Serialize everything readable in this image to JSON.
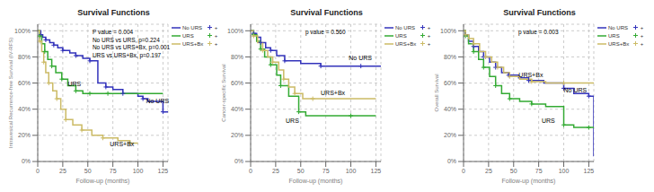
{
  "chart_data": [
    {
      "type": "line",
      "title": "Survival Functions",
      "x_label": "Follow-up (months)",
      "y_label": "Intravesical Recurrence-free Survival (IV-RFS)",
      "annotation": "P value = 0.004\nNo URS vs URS, p=0.224\nNo URS vs URS+Bx, p=0.001\nURS vs URS+Bx, p=0.197",
      "curve_labels": [
        {
          "text": "No URS",
          "x": 108,
          "y": 0.44
        },
        {
          "text": "URS",
          "x": 30,
          "y": 0.57
        },
        {
          "text": "URS+Bx",
          "x": 72,
          "y": 0.11
        }
      ],
      "xlim": [
        0,
        130
      ],
      "ylim": [
        0,
        1.05
      ],
      "xticks": [
        0,
        25,
        50,
        75,
        100,
        125
      ],
      "yticks": [
        {
          "value": 0.0,
          "label": "0%"
        },
        {
          "value": 0.2,
          "label": "20%"
        },
        {
          "value": 0.4,
          "label": "40%"
        },
        {
          "value": 0.6,
          "label": "60%"
        },
        {
          "value": 0.8,
          "label": "80%"
        },
        {
          "value": 1.0,
          "label": "100%"
        }
      ],
      "grid": true,
      "legend": "right",
      "series": [
        {
          "name": "No URS",
          "type": "step",
          "color": "#3333bb",
          "x": [
            0,
            3,
            5,
            8,
            12,
            16,
            20,
            25,
            32,
            38,
            45,
            52,
            60,
            68,
            75,
            85,
            100,
            105,
            110,
            125,
            130
          ],
          "values": [
            1.0,
            0.97,
            0.95,
            0.93,
            0.91,
            0.89,
            0.87,
            0.85,
            0.83,
            0.81,
            0.79,
            0.77,
            0.6,
            0.57,
            0.55,
            0.52,
            0.5,
            0.48,
            0.46,
            0.38,
            0.38
          ]
        },
        {
          "name": "URS",
          "type": "step",
          "color": "#33aa33",
          "x": [
            0,
            2,
            4,
            7,
            10,
            14,
            18,
            24,
            30,
            38,
            45,
            52,
            60,
            70,
            100,
            125
          ],
          "values": [
            1.0,
            0.96,
            0.9,
            0.84,
            0.78,
            0.73,
            0.68,
            0.63,
            0.58,
            0.54,
            0.52,
            0.52,
            0.52,
            0.52,
            0.52,
            0.52
          ]
        },
        {
          "name": "URS+Bx",
          "type": "step",
          "color": "#ccbb66",
          "x": [
            0,
            2,
            4,
            6,
            8,
            11,
            15,
            19,
            23,
            28,
            35,
            44,
            54,
            65,
            80,
            92,
            100
          ],
          "values": [
            1.0,
            0.92,
            0.84,
            0.76,
            0.68,
            0.6,
            0.54,
            0.48,
            0.4,
            0.32,
            0.28,
            0.24,
            0.2,
            0.18,
            0.16,
            0.14,
            0.14
          ]
        },
        {
          "name": "+",
          "type": "scatter",
          "marker": "+",
          "color": "#3333bb",
          "x": [
            3,
            8,
            16,
            25,
            38,
            52,
            68,
            85,
            105,
            125
          ],
          "values": [
            0.97,
            0.93,
            0.89,
            0.85,
            0.81,
            0.77,
            0.57,
            0.52,
            0.48,
            0.38
          ]
        },
        {
          "name": "+",
          "type": "scatter",
          "marker": "+",
          "color": "#33aa33",
          "x": [
            2,
            7,
            14,
            24,
            38,
            52,
            70
          ],
          "values": [
            0.96,
            0.84,
            0.73,
            0.63,
            0.54,
            0.52,
            0.52
          ]
        },
        {
          "name": "+",
          "type": "scatter",
          "marker": "+",
          "color": "#ccbb66",
          "x": [
            2,
            6,
            11,
            19,
            28,
            44,
            65,
            92
          ],
          "values": [
            0.92,
            0.76,
            0.6,
            0.48,
            0.32,
            0.24,
            0.18,
            0.14
          ]
        }
      ]
    },
    {
      "type": "line",
      "title": "Survival Functions",
      "x_label": "Follow-up (months)",
      "y_label": "Cancer-specific Survival",
      "annotation": "p value = 0.560",
      "curve_labels": [
        {
          "text": "No URS",
          "x": 98,
          "y": 0.77
        },
        {
          "text": "URS",
          "x": 35,
          "y": 0.29
        },
        {
          "text": "URS+Bx",
          "x": 70,
          "y": 0.5
        }
      ],
      "xlim": [
        0,
        130
      ],
      "ylim": [
        0,
        1.05
      ],
      "xticks": [
        0,
        25,
        50,
        75,
        100,
        125
      ],
      "yticks": [
        {
          "value": 0.0,
          "label": "0%"
        },
        {
          "value": 0.2,
          "label": "20%"
        },
        {
          "value": 0.4,
          "label": "40%"
        },
        {
          "value": 0.6,
          "label": "60%"
        },
        {
          "value": 0.8,
          "label": "80%"
        },
        {
          "value": 1.0,
          "label": "100%"
        }
      ],
      "grid": true,
      "legend": "right",
      "series": [
        {
          "name": "No URS",
          "type": "step",
          "color": "#3333bb",
          "x": [
            0,
            3,
            6,
            10,
            15,
            20,
            26,
            34,
            50,
            70,
            100,
            110,
            125,
            130
          ],
          "values": [
            1.0,
            0.98,
            0.95,
            0.91,
            0.87,
            0.85,
            0.81,
            0.77,
            0.75,
            0.73,
            0.73,
            0.73,
            0.73,
            0.73
          ]
        },
        {
          "name": "URS",
          "type": "step",
          "color": "#33aa33",
          "x": [
            0,
            3,
            6,
            10,
            14,
            20,
            26,
            30,
            38,
            48,
            55,
            100,
            125
          ],
          "values": [
            1.0,
            0.97,
            0.92,
            0.86,
            0.8,
            0.74,
            0.66,
            0.58,
            0.5,
            0.38,
            0.35,
            0.35,
            0.35
          ]
        },
        {
          "name": "URS+Bx",
          "type": "step",
          "color": "#ccbb66",
          "x": [
            0,
            3,
            7,
            12,
            17,
            22,
            28,
            33,
            38,
            44,
            52,
            62,
            100,
            125
          ],
          "values": [
            1.0,
            0.96,
            0.91,
            0.85,
            0.8,
            0.76,
            0.7,
            0.63,
            0.57,
            0.52,
            0.48,
            0.48,
            0.48,
            0.48
          ]
        },
        {
          "name": "+",
          "type": "scatter",
          "marker": "+",
          "color": "#3333bb",
          "x": [
            3,
            10,
            20,
            34,
            70,
            110
          ],
          "values": [
            0.98,
            0.91,
            0.85,
            0.77,
            0.73,
            0.73
          ]
        },
        {
          "name": "+",
          "type": "scatter",
          "marker": "+",
          "color": "#33aa33",
          "x": [
            3,
            10,
            20,
            30,
            48,
            100
          ],
          "values": [
            0.97,
            0.86,
            0.74,
            0.58,
            0.38,
            0.35
          ]
        },
        {
          "name": "+",
          "type": "scatter",
          "marker": "+",
          "color": "#ccbb66",
          "x": [
            3,
            12,
            22,
            33,
            44,
            62
          ],
          "values": [
            0.96,
            0.85,
            0.76,
            0.63,
            0.52,
            0.48
          ]
        }
      ]
    },
    {
      "type": "line",
      "title": "Survival Functions",
      "x_label": "Follow-up (months)",
      "y_label": "Overall Survival",
      "annotation": "p value = 0.003",
      "curve_labels": [
        {
          "text": "No URS",
          "x": 100,
          "y": 0.52
        },
        {
          "text": "URS",
          "x": 78,
          "y": 0.29
        },
        {
          "text": "URS+Bx",
          "x": 55,
          "y": 0.64
        }
      ],
      "xlim": [
        0,
        130
      ],
      "ylim": [
        0,
        1.05
      ],
      "xticks": [
        0,
        25,
        50,
        75,
        100,
        125
      ],
      "yticks": [
        {
          "value": 0.0,
          "label": "0%"
        },
        {
          "value": 0.2,
          "label": "20%"
        },
        {
          "value": 0.4,
          "label": "40%"
        },
        {
          "value": 0.6,
          "label": "60%"
        },
        {
          "value": 0.8,
          "label": "80%"
        },
        {
          "value": 1.0,
          "label": "100%"
        }
      ],
      "grid": true,
      "legend": "right",
      "series": [
        {
          "name": "No URS",
          "type": "step",
          "color": "#3333bb",
          "x": [
            0,
            2,
            5,
            10,
            15,
            20,
            26,
            32,
            38,
            45,
            55,
            65,
            80,
            100,
            110,
            125,
            130
          ],
          "values": [
            1.0,
            0.97,
            0.92,
            0.88,
            0.84,
            0.8,
            0.76,
            0.72,
            0.68,
            0.66,
            0.64,
            0.62,
            0.6,
            0.56,
            0.52,
            0.5,
            0.04
          ]
        },
        {
          "name": "URS",
          "type": "step",
          "color": "#33aa33",
          "x": [
            0,
            2,
            5,
            10,
            15,
            20,
            26,
            32,
            38,
            46,
            56,
            68,
            82,
            100,
            110,
            125,
            130
          ],
          "values": [
            1.0,
            0.96,
            0.9,
            0.84,
            0.78,
            0.72,
            0.65,
            0.58,
            0.52,
            0.48,
            0.46,
            0.44,
            0.42,
            0.28,
            0.26,
            0.26,
            0.26
          ]
        },
        {
          "name": "URS+Bx",
          "type": "step",
          "color": "#ccbb66",
          "x": [
            0,
            2,
            5,
            10,
            16,
            22,
            28,
            34,
            40,
            46,
            56,
            68,
            82,
            100,
            125,
            130
          ],
          "values": [
            1.0,
            0.97,
            0.94,
            0.9,
            0.84,
            0.8,
            0.76,
            0.72,
            0.68,
            0.65,
            0.63,
            0.61,
            0.6,
            0.6,
            0.6,
            0.6
          ]
        },
        {
          "name": "+",
          "type": "scatter",
          "marker": "+",
          "color": "#3333bb",
          "x": [
            2,
            10,
            20,
            32,
            45,
            65,
            100,
            125
          ],
          "values": [
            0.97,
            0.88,
            0.8,
            0.72,
            0.66,
            0.62,
            0.56,
            0.5
          ]
        },
        {
          "name": "+",
          "type": "scatter",
          "marker": "+",
          "color": "#33aa33",
          "x": [
            2,
            10,
            20,
            32,
            46,
            68,
            100,
            125
          ],
          "values": [
            0.96,
            0.84,
            0.72,
            0.58,
            0.48,
            0.44,
            0.28,
            0.26
          ]
        },
        {
          "name": "+",
          "type": "scatter",
          "marker": "+",
          "color": "#ccbb66",
          "x": [
            2,
            10,
            22,
            34,
            46,
            68,
            100
          ],
          "values": [
            0.97,
            0.9,
            0.8,
            0.72,
            0.65,
            0.61,
            0.6
          ]
        }
      ]
    }
  ]
}
